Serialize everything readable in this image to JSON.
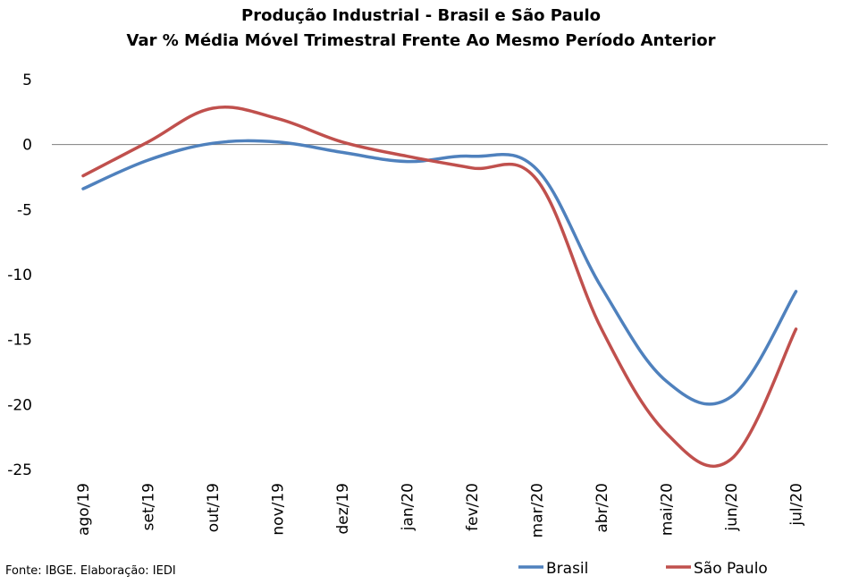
{
  "chart_data": {
    "type": "line",
    "title": "Produção Industrial - Brasil e São Paulo",
    "subtitle": "Var % Média Móvel Trimestral Frente Ao Mesmo Período Anterior",
    "categories": [
      "ago/19",
      "set/19",
      "out/19",
      "nov/19",
      "dez/19",
      "jan/20",
      "fev/20",
      "mar/20",
      "abr/20",
      "mai/20",
      "jun/20",
      "jul/20"
    ],
    "series": [
      {
        "name": "Brasil",
        "color": "#4f81bd",
        "values": [
          -3.4,
          -1.2,
          0.1,
          0.2,
          -0.6,
          -1.3,
          -0.9,
          -1.9,
          -11.0,
          -18.2,
          -19.4,
          -11.3
        ]
      },
      {
        "name": "São Paulo",
        "color": "#c0504d",
        "values": [
          -2.4,
          0.2,
          2.8,
          2.0,
          0.2,
          -0.9,
          -1.8,
          -2.7,
          -14.2,
          -22.2,
          -24.2,
          -14.2
        ]
      }
    ],
    "ylim": [
      -25,
      5
    ],
    "yticks": [
      "5",
      "0",
      "-5",
      "-10",
      "-15",
      "-20",
      "-25"
    ],
    "grid": false,
    "legend": "bottom-right",
    "source": "Fonte: IBGE. Elaboração: IEDI"
  }
}
